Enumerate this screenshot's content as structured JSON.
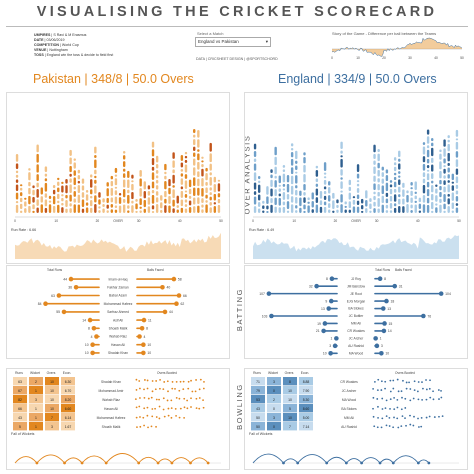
{
  "title": "VISUALISING THE CRICKET SCORECARD",
  "meta": [
    {
      "label": "UMPIRES",
      "value": "S Ravi & M Erasmus"
    },
    {
      "label": "DATE",
      "value": "03/06/2019"
    },
    {
      "label": "COMPETITION",
      "value": "World Cup"
    },
    {
      "label": "VENUE",
      "value": "Nottingham"
    },
    {
      "label": "TOSS",
      "value": "England win the toss & decide to field first"
    }
  ],
  "match_select": {
    "label": "Select a Match",
    "value": "England vs Pakistan"
  },
  "data_credit": "DATA | CRICSHEET   DESIGN | @SPORTSCHORD",
  "story_title": "Story of the Game - Difference per ball between the Teams",
  "colors": {
    "pakistan": "#e2871f",
    "pakistan_dark": "#c2541a",
    "england": "#3d6fa0",
    "england_light": "#a9cbe5"
  },
  "innings": [
    {
      "team": "Pakistan",
      "score": "Pakistan | 348/8 | 50.0 Overs",
      "run_rate": "Run Rate : 6.66"
    },
    {
      "team": "England",
      "score": "England | 334/9 | 50.0 Overs",
      "run_rate": "Run Rate : 6.49"
    }
  ],
  "side_labels": {
    "over": "OVER ANALYSIS",
    "batting": "BATTING",
    "bowling": "BOWLING"
  },
  "axis": {
    "over": "OVER",
    "ticks": [
      "0",
      "10",
      "20",
      "30",
      "40",
      "50"
    ]
  },
  "headers": {
    "total_runs": "Total Runs",
    "balls_faced": "Balls Faced",
    "overs_bowled": "Overs Bowled",
    "fall": "Fall of Wickets",
    "bowl_cols": [
      "Runs",
      "Wicket",
      "Overs",
      "Econ."
    ]
  },
  "chart_data": [
    {
      "type": "bar",
      "title": "Pakistan batting",
      "xlabel": "Total Runs / Balls Faced",
      "categories": [
        "Imam-ul-Haq",
        "Fakhar Zaman",
        "Babar Azam",
        "Mohammad Hafeez",
        "Sarfraz Ahmed",
        "Asif Ali",
        "Shoaib Malik",
        "Wahab Riaz",
        "Hasan Ali",
        "Shadab Khan"
      ],
      "series": [
        {
          "name": "Total Runs",
          "values": [
            44,
            36,
            63,
            84,
            55,
            14,
            8,
            4,
            10,
            10
          ]
        },
        {
          "name": "Balls Faced",
          "values": [
            58,
            40,
            66,
            62,
            44,
            11,
            8,
            4,
            10,
            10
          ]
        }
      ]
    },
    {
      "type": "bar",
      "title": "England batting",
      "xlabel": "Total Runs / Balls Faced",
      "categories": [
        "JJ Roy",
        "JM Bairstow",
        "JE Root",
        "EJG Morgan",
        "BA Stokes",
        "JC Buttler",
        "MM Ali",
        "CR Woakes",
        "JC Archer",
        "AU Rashid",
        "MA Wood"
      ],
      "series": [
        {
          "name": "Total Runs",
          "values": [
            8,
            32,
            107,
            9,
            13,
            103,
            19,
            21,
            1,
            3,
            10
          ]
        },
        {
          "name": "Balls Faced",
          "values": [
            8,
            31,
            104,
            18,
            13,
            76,
            15,
            14,
            1,
            3,
            10
          ]
        }
      ]
    },
    {
      "type": "table",
      "title": "Pakistan bowling",
      "columns": [
        "Runs",
        "Wicket",
        "Overs",
        "Econ."
      ],
      "rows": [
        {
          "name": "Shadab Khan",
          "values": [
            63,
            2,
            10,
            "6.30"
          ]
        },
        {
          "name": "Mohammad Amir",
          "values": [
            67,
            1,
            10,
            "6.70"
          ]
        },
        {
          "name": "Wahab Riaz",
          "values": [
            82,
            3,
            10,
            "8.20"
          ]
        },
        {
          "name": "Hasan Ali",
          "values": [
            66,
            1,
            10,
            "6.60"
          ]
        },
        {
          "name": "Mohammad Hafeez",
          "values": [
            43,
            1,
            7,
            "6.14"
          ]
        },
        {
          "name": "Shoaib Malik",
          "values": [
            5,
            1,
            3,
            "1.67"
          ]
        }
      ]
    },
    {
      "type": "table",
      "title": "England bowling",
      "columns": [
        "Runs",
        "Wicket",
        "Overs",
        "Econ."
      ],
      "rows": [
        {
          "name": "CR Woakes",
          "values": [
            71,
            3,
            8,
            "8.88"
          ]
        },
        {
          "name": "JC Archer",
          "values": [
            79,
            0,
            10,
            "7.90"
          ]
        },
        {
          "name": "MA Wood",
          "values": [
            53,
            2,
            10,
            "5.30"
          ]
        },
        {
          "name": "BA Stokes",
          "values": [
            43,
            0,
            5,
            "8.60"
          ]
        },
        {
          "name": "MM Ali",
          "values": [
            50,
            3,
            10,
            "5.00"
          ]
        },
        {
          "name": "AU Rashid",
          "values": [
            50,
            0,
            7,
            "7.14"
          ]
        }
      ]
    }
  ]
}
